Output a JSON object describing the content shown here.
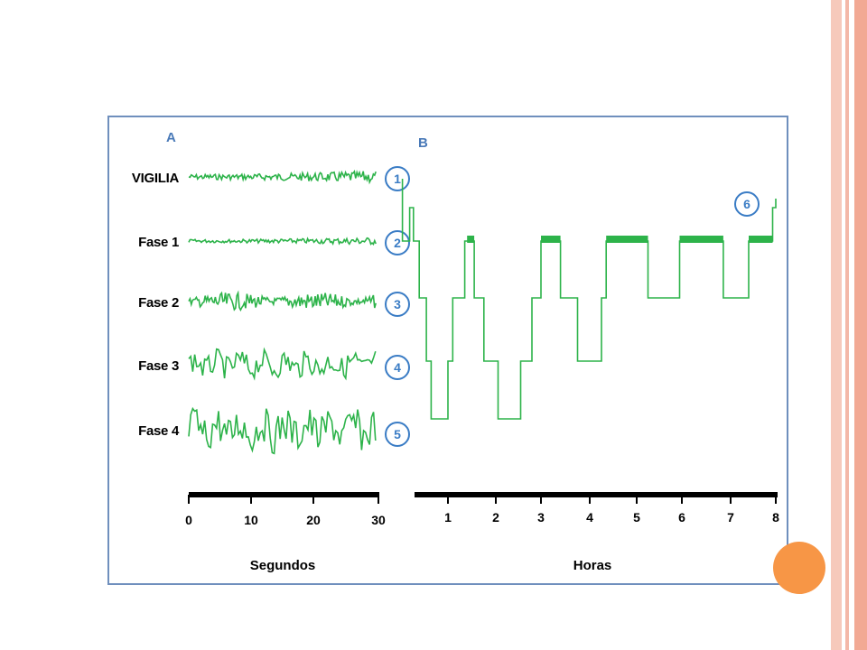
{
  "colors": {
    "trace": "#2db34a",
    "frame": "#6f8fbd",
    "circle": "#3a7cc5",
    "accent": "#f79646",
    "decor": "#f4b8a8"
  },
  "panel_a": {
    "letter": "A",
    "stages": [
      {
        "label": "VIGILIA",
        "number": "1",
        "amplitude": 5,
        "noise": "fast"
      },
      {
        "label": "Fase 1",
        "number": "2",
        "amplitude": 3,
        "noise": "fast"
      },
      {
        "label": "Fase 2",
        "number": "3",
        "amplitude": 7,
        "noise": "spindle"
      },
      {
        "label": "Fase 3",
        "number": "4",
        "amplitude": 13,
        "noise": "slow"
      },
      {
        "label": "Fase 4",
        "number": "5",
        "amplitude": 20,
        "noise": "slow"
      }
    ],
    "axis": {
      "ticks": [
        "0",
        "10",
        "20",
        "30"
      ],
      "title": "Segundos"
    }
  },
  "panel_b": {
    "letter": "B",
    "marker": "6",
    "axis": {
      "ticks": [
        "1",
        "2",
        "3",
        "4",
        "5",
        "6",
        "7",
        "8"
      ],
      "title": "Horas"
    }
  },
  "chart_data": {
    "type": "line",
    "title": "",
    "xlabel": "Horas",
    "ylabel": "",
    "xlim": [
      0,
      8
    ],
    "y_levels_note": "stage number 1-5 (1 = VIGILIA, 5 = Fase 4)",
    "hypnogram": [
      [
        0.2,
        1
      ],
      [
        0.28,
        2
      ],
      [
        0.4,
        3
      ],
      [
        0.55,
        4
      ],
      [
        0.65,
        5
      ],
      [
        1.0,
        4
      ],
      [
        1.1,
        3
      ],
      [
        1.35,
        2
      ],
      [
        1.55,
        3
      ],
      [
        1.75,
        4
      ],
      [
        2.05,
        5
      ],
      [
        2.55,
        4
      ],
      [
        2.8,
        3
      ],
      [
        3.0,
        2
      ],
      [
        3.4,
        3
      ],
      [
        3.75,
        4
      ],
      [
        4.25,
        3
      ],
      [
        4.35,
        2
      ],
      [
        5.25,
        3
      ],
      [
        5.95,
        2
      ],
      [
        6.85,
        3
      ],
      [
        7.4,
        2
      ],
      [
        7.93,
        1
      ]
    ]
  }
}
